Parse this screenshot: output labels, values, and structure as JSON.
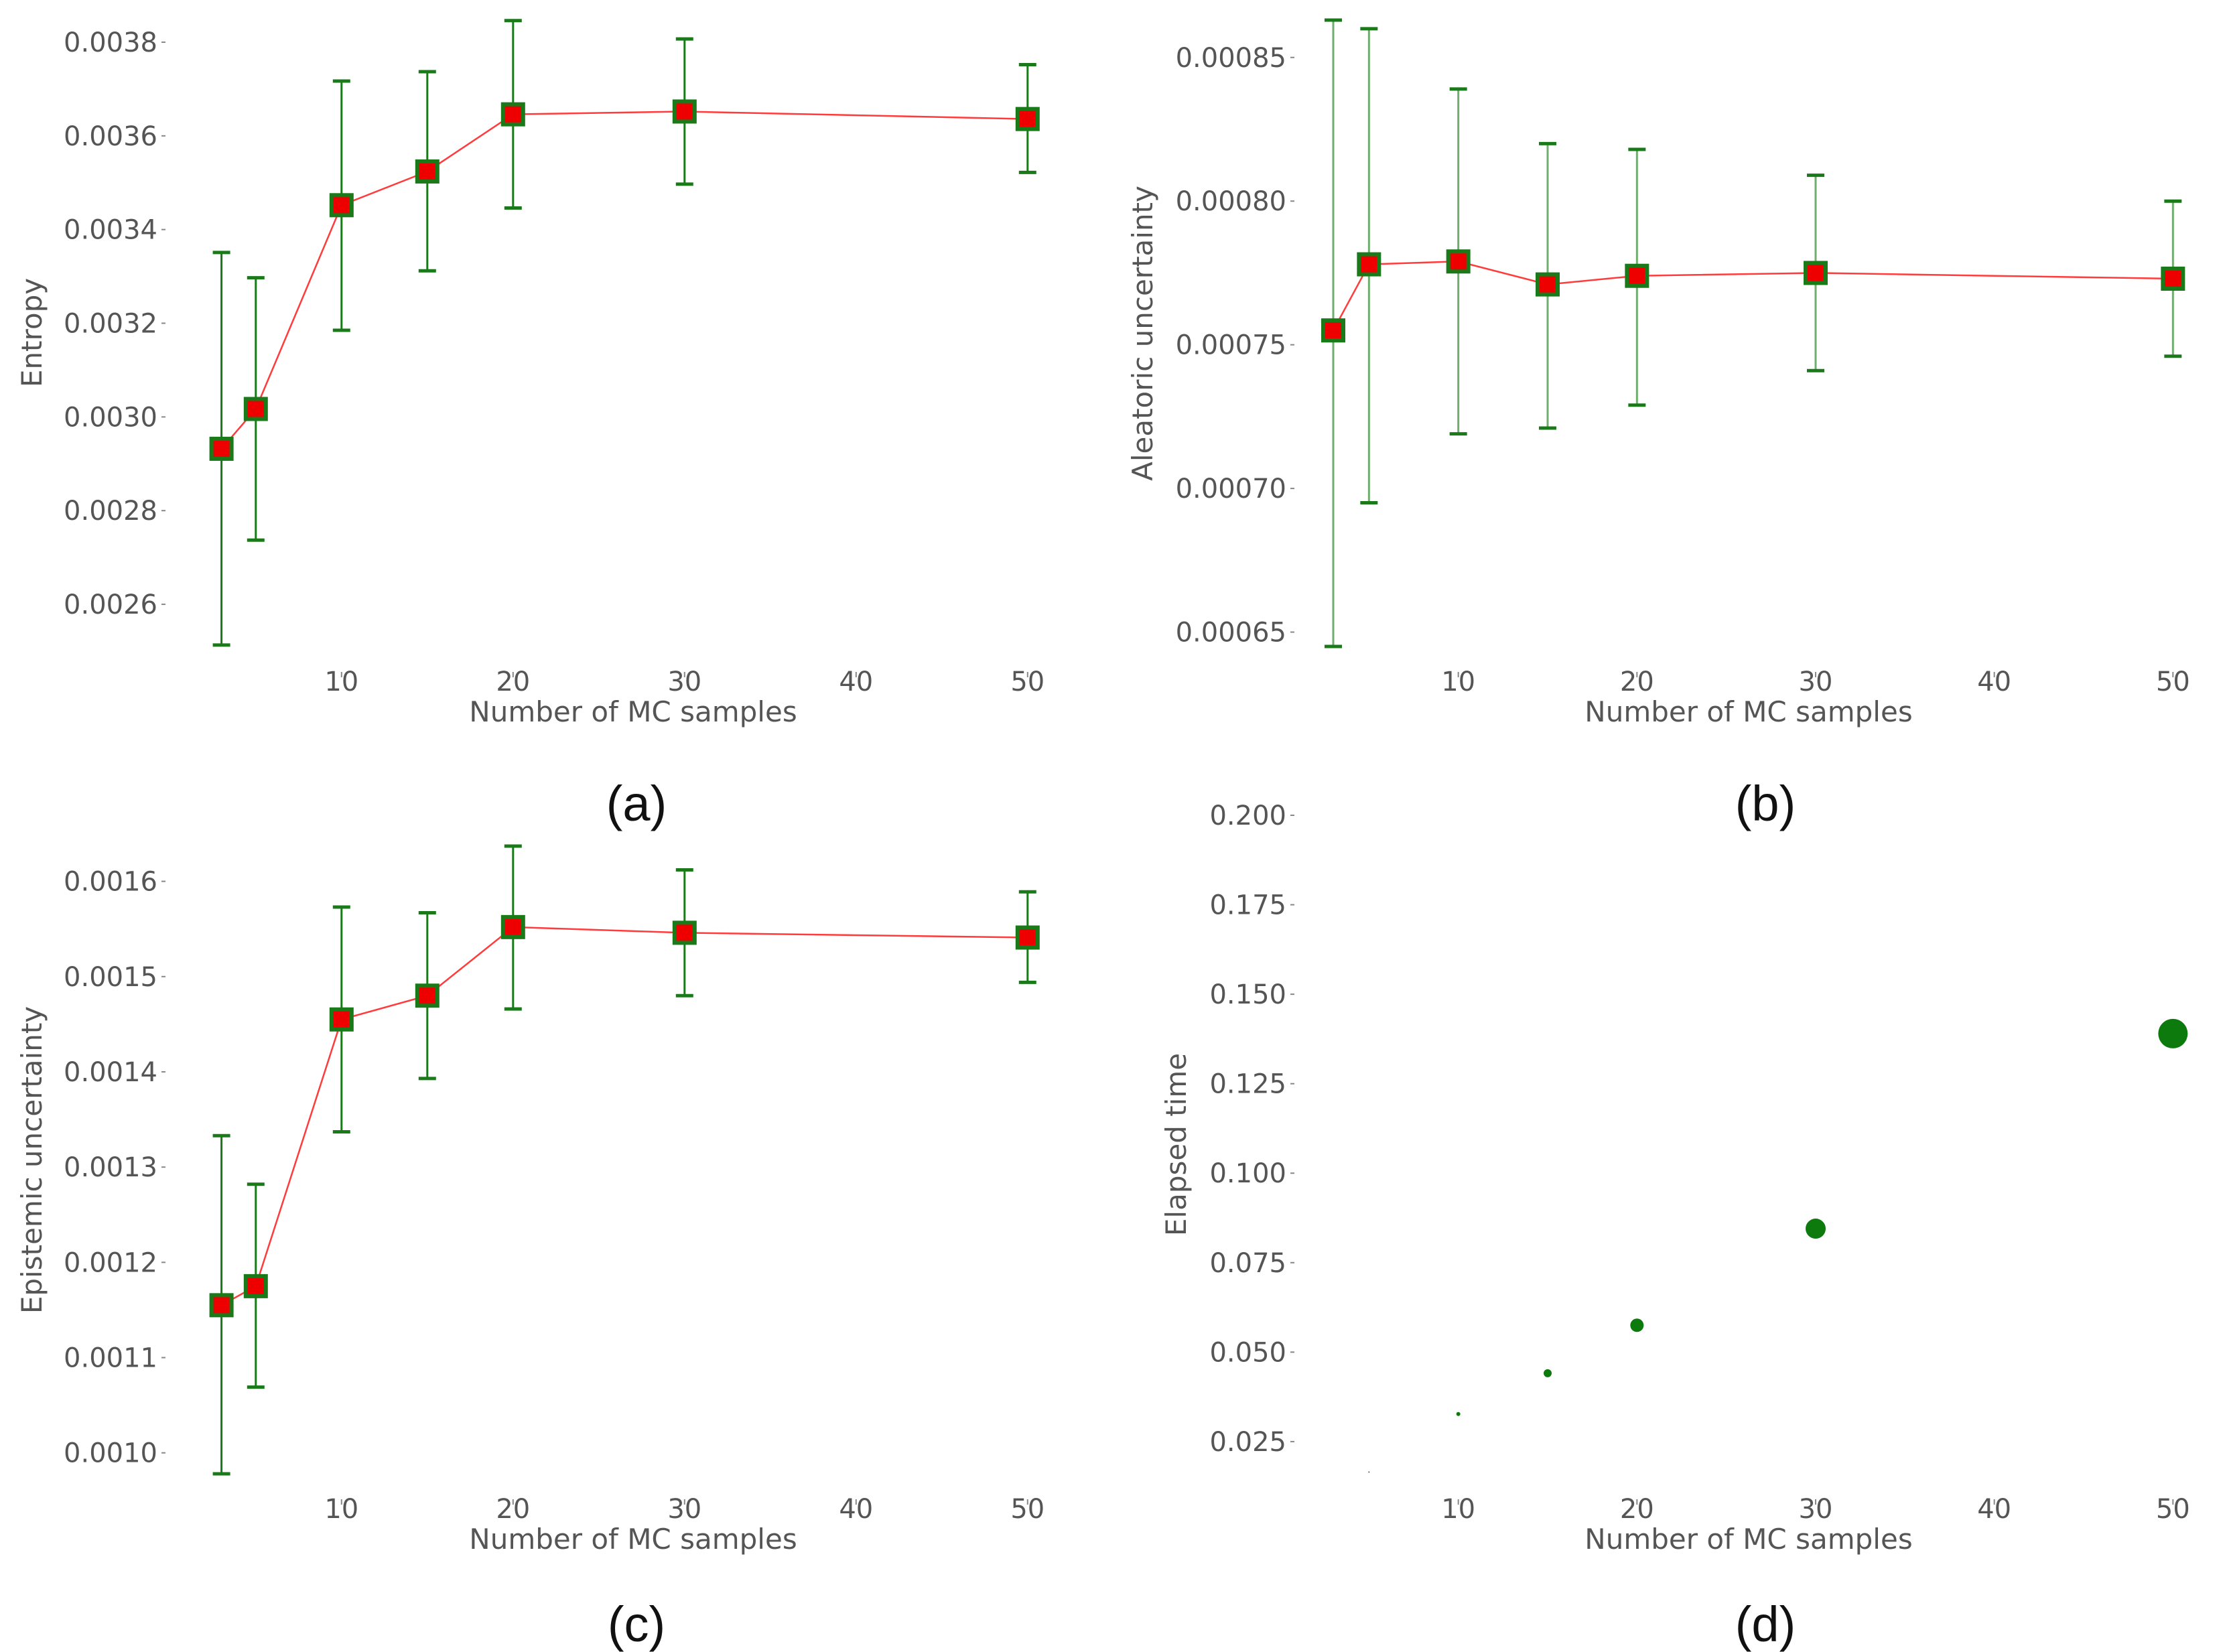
{
  "colors": {
    "line": "#ff3b3b",
    "marker_fill": "#ee0000",
    "marker_edge": "#1a7a1a",
    "errorbar": "#1a7a1a",
    "errorbar_light": "#6fae6f",
    "scatter": "#0d7a0d",
    "text": "#555555"
  },
  "chart_data": [
    {
      "id": "a",
      "panel_label": "(a)",
      "type": "line",
      "title": "",
      "xlabel": "Number of MC samples",
      "ylabel": "Entropy",
      "xlim": [
        2,
        52
      ],
      "ylim": [
        0.00251,
        0.00385
      ],
      "xticks": [
        10,
        20,
        30,
        40,
        50
      ],
      "xtick_labels": [
        "10",
        "20",
        "30",
        "40",
        "50"
      ],
      "yticks": [
        0.0026,
        0.0028,
        0.003,
        0.0032,
        0.0034,
        0.0036,
        0.0038
      ],
      "ytick_labels": [
        "0.0026",
        "0.0028",
        "0.0030",
        "0.0032",
        "0.0034",
        "0.0036",
        "0.0038"
      ],
      "grid": false,
      "x": [
        3,
        5,
        10,
        15,
        20,
        30,
        50
      ],
      "y": [
        0.002932,
        0.003017,
        0.003452,
        0.003524,
        0.003646,
        0.003652,
        0.003636
      ],
      "yerr_low": [
        0.002513,
        0.002737,
        0.003185,
        0.003312,
        0.003446,
        0.003497,
        0.003522
      ],
      "yerr_high": [
        0.003351,
        0.003297,
        0.003717,
        0.003737,
        0.003846,
        0.003807,
        0.003752
      ]
    },
    {
      "id": "b",
      "panel_label": "(b)",
      "type": "line",
      "title": "",
      "xlabel": "Number of MC samples",
      "ylabel": "Aleatoric uncertainty",
      "xlim": [
        3,
        51
      ],
      "ylim": [
        0.000645,
        0.000863
      ],
      "xticks": [
        10,
        20,
        30,
        40,
        50
      ],
      "xtick_labels": [
        "10",
        "20",
        "30",
        "40",
        "50"
      ],
      "yticks": [
        0.00065,
        0.0007,
        0.00075,
        0.0008,
        0.00085
      ],
      "ytick_labels": [
        "0.00065",
        "0.00070",
        "0.00075",
        "0.00080",
        "0.00085"
      ],
      "grid": false,
      "x": [
        3,
        5,
        10,
        15,
        20,
        30,
        50
      ],
      "y": [
        0.000755,
        0.000778,
        0.000779,
        0.000771,
        0.000774,
        0.000775,
        0.000773
      ],
      "yerr_low": [
        0.000645,
        0.000695,
        0.000719,
        0.000721,
        0.000729,
        0.000741,
        0.000746
      ],
      "yerr_high": [
        0.000863,
        0.00086,
        0.000839,
        0.00082,
        0.000818,
        0.000809,
        0.0008
      ]
    },
    {
      "id": "c",
      "panel_label": "(c)",
      "type": "line",
      "title": "",
      "xlabel": "Number of MC samples",
      "ylabel": "Epistemic uncertainty",
      "xlim": [
        2,
        52
      ],
      "ylim": [
        0.000978,
        0.001637
      ],
      "xticks": [
        10,
        20,
        30,
        40,
        50
      ],
      "xtick_labels": [
        "10",
        "20",
        "30",
        "40",
        "50"
      ],
      "yticks": [
        0.001,
        0.0011,
        0.0012,
        0.0013,
        0.0014,
        0.0015,
        0.0016
      ],
      "ytick_labels": [
        "0.0010",
        "0.0011",
        "0.0012",
        "0.0013",
        "0.0014",
        "0.0015",
        "0.0016"
      ],
      "grid": false,
      "x": [
        3,
        5,
        10,
        15,
        20,
        30,
        50
      ],
      "y": [
        0.001155,
        0.001175,
        0.001455,
        0.00148,
        0.001552,
        0.001546,
        0.001541
      ],
      "yerr_low": [
        0.000978,
        0.001069,
        0.001337,
        0.001393,
        0.001466,
        0.00148,
        0.001494
      ],
      "yerr_high": [
        0.001333,
        0.001282,
        0.001573,
        0.001567,
        0.001637,
        0.001612,
        0.001589
      ]
    },
    {
      "id": "d",
      "panel_label": "(d)",
      "type": "scatter",
      "title": "",
      "xlabel": "Number of MC samples",
      "ylabel": "Elapsed time",
      "xlim": [
        3,
        51
      ],
      "ylim": [
        0.016,
        0.2
      ],
      "xticks": [
        10,
        20,
        30,
        40,
        50
      ],
      "xtick_labels": [
        "10",
        "20",
        "30",
        "40",
        "50"
      ],
      "yticks": [
        0.025,
        0.05,
        0.075,
        0.1,
        0.125,
        0.15,
        0.175,
        0.2
      ],
      "ytick_labels": [
        "0.025",
        "0.050",
        "0.075",
        "0.100",
        "0.125",
        "0.150",
        "0.175",
        "0.200"
      ],
      "grid": false,
      "x": [
        5,
        10,
        15,
        20,
        30,
        50
      ],
      "y": [
        0.0165,
        0.0327,
        0.0441,
        0.0575,
        0.0845,
        0.139
      ],
      "marker_size_note": "marker size grows with number of MC samples",
      "sizes": [
        1,
        3,
        6,
        10,
        15,
        22
      ]
    }
  ]
}
